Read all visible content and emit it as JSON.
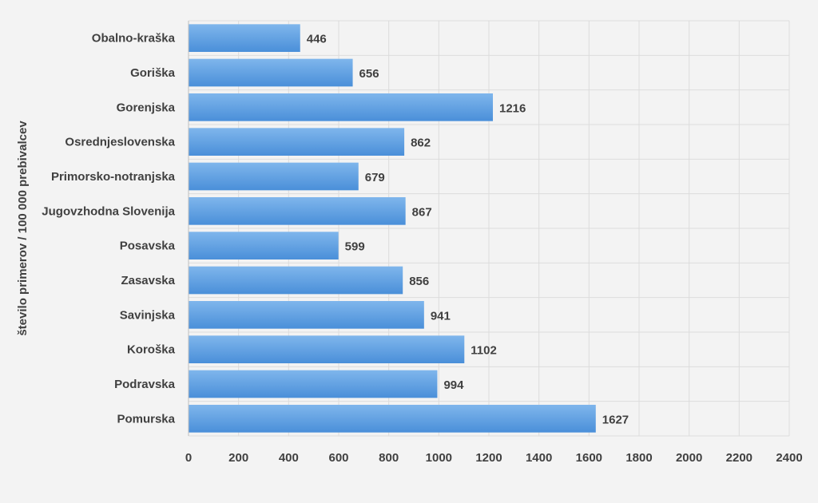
{
  "chart_data": {
    "type": "bar",
    "orientation": "horizontal",
    "categories": [
      "Obalno-kraška",
      "Goriška",
      "Gorenjska",
      "Osrednjeslovenska",
      "Primorsko-notranjska",
      "Jugovzhodna Slovenija",
      "Posavska",
      "Zasavska",
      "Savinjska",
      "Koroška",
      "Podravska",
      "Pomurska"
    ],
    "values": [
      446,
      656,
      1216,
      862,
      679,
      867,
      599,
      856,
      941,
      1102,
      994,
      1627
    ],
    "title": "",
    "xlabel": "",
    "ylabel": "število primerov / 100 000 prebivalcev",
    "xlim": [
      0,
      2400
    ],
    "xticks": [
      0,
      200,
      400,
      600,
      800,
      1000,
      1200,
      1400,
      1600,
      1800,
      2000,
      2200,
      2400
    ],
    "grid": true,
    "legend": "none",
    "colors": {
      "bar_top": "#7fb6ec",
      "bar_bottom": "#4a8fd9",
      "grid": "#dcdcdc",
      "text": "#404040",
      "background": "#f3f3f3"
    }
  }
}
